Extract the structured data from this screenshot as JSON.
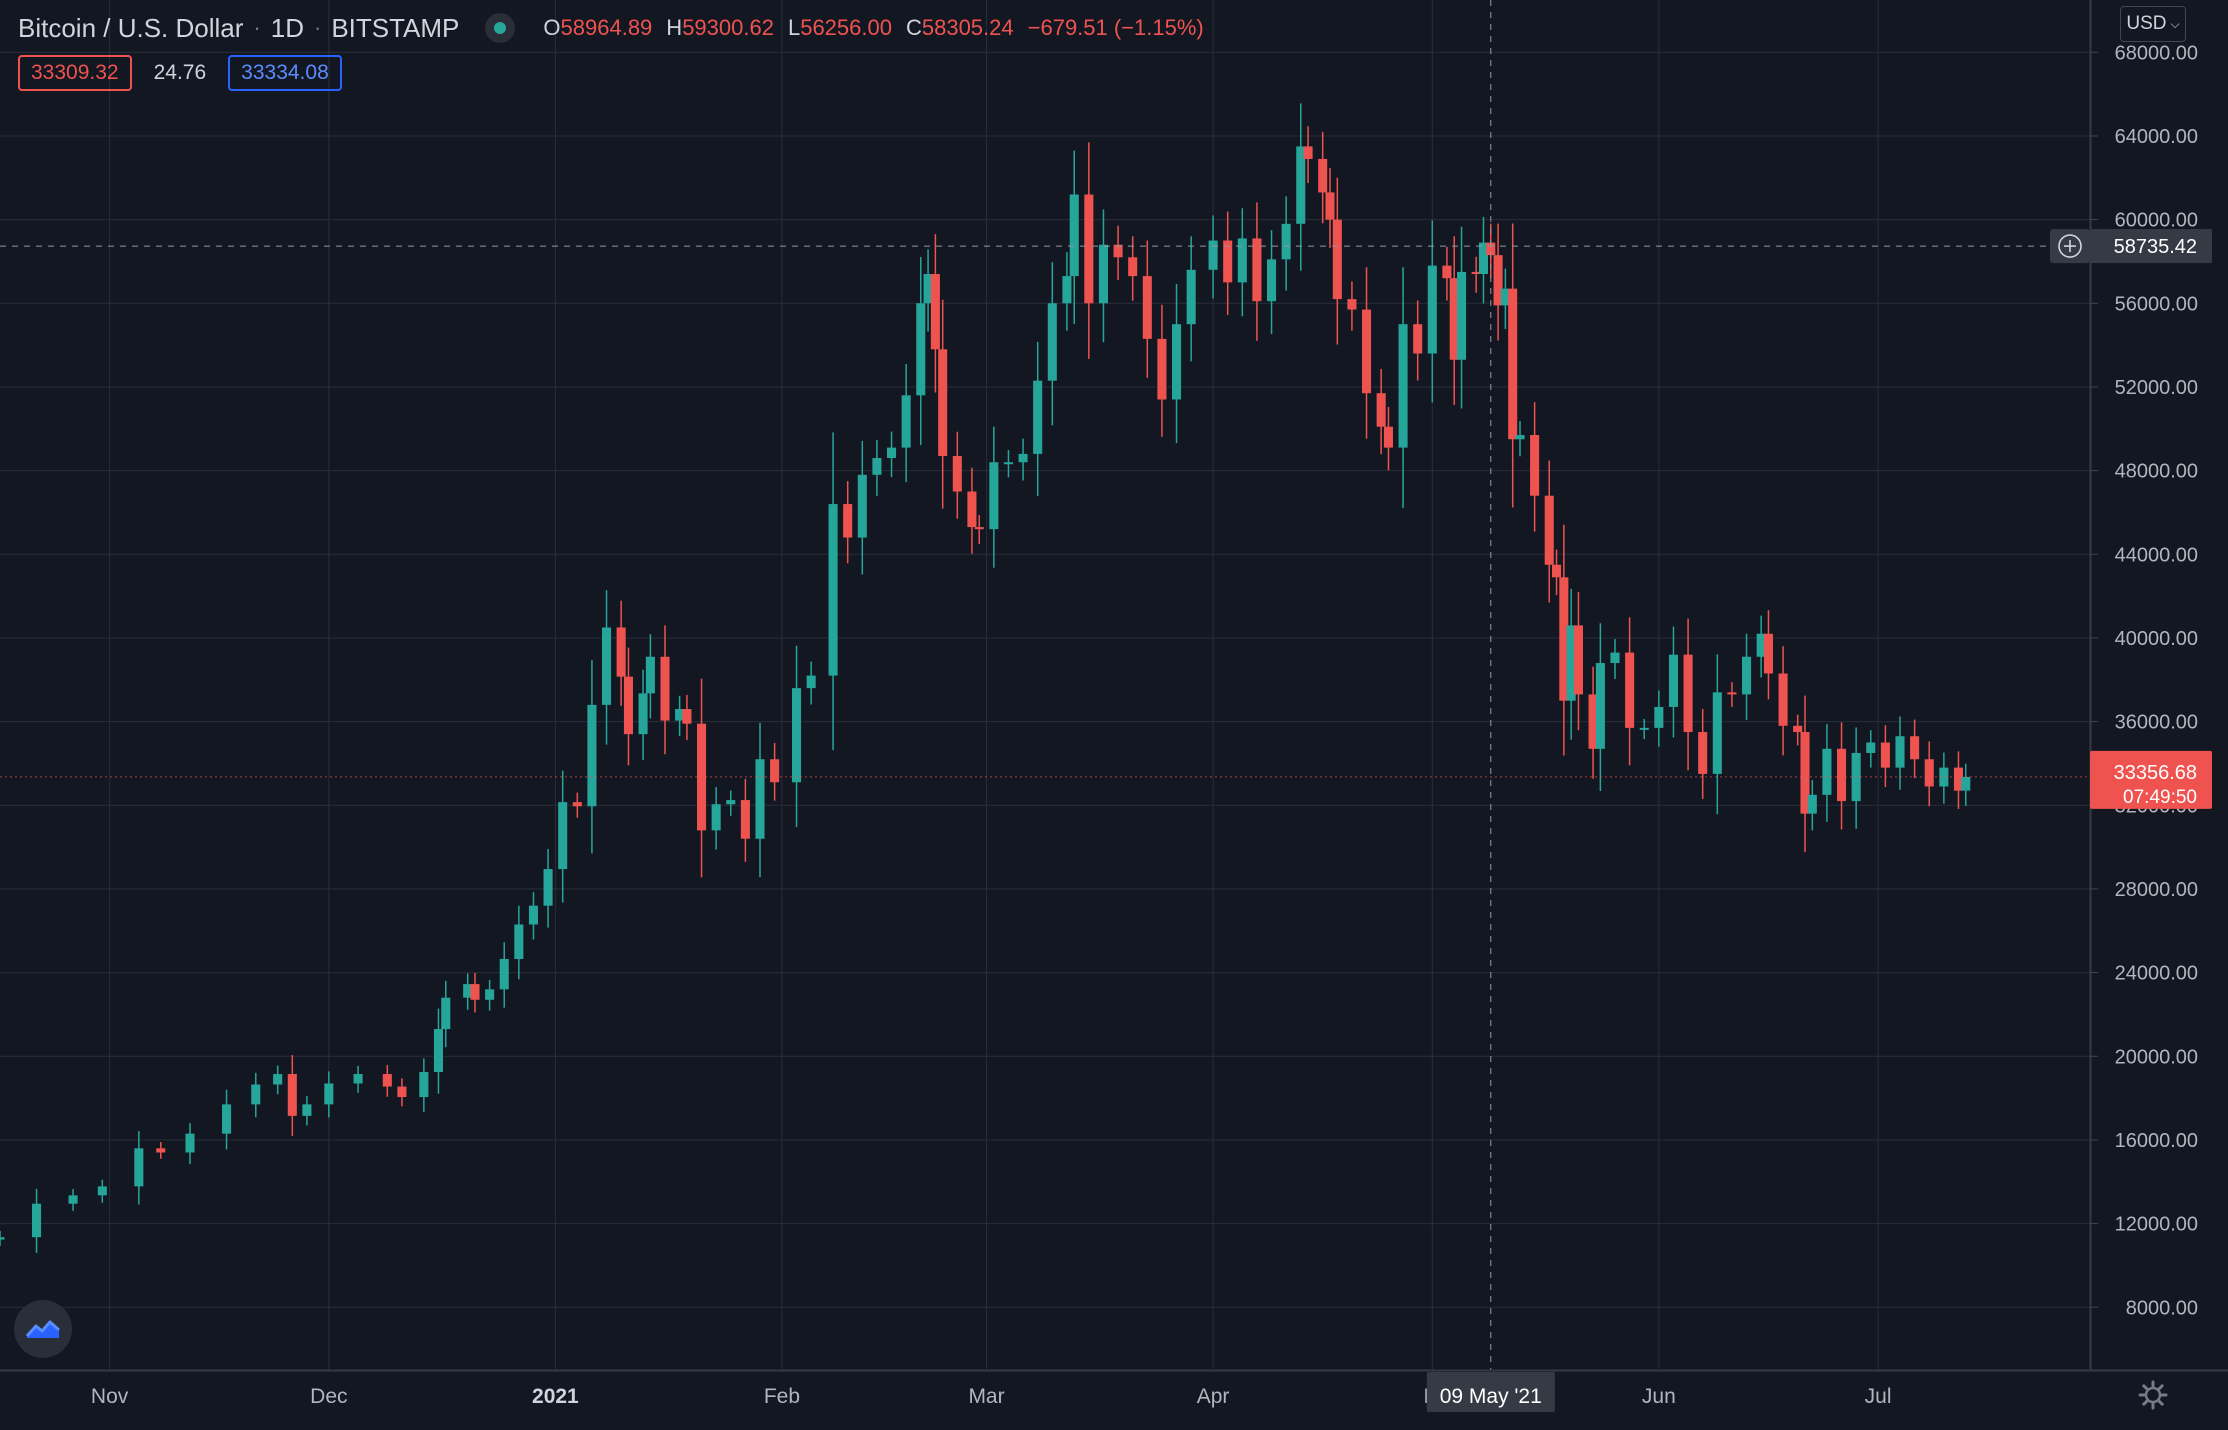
{
  "header": {
    "symbol": "Bitcoin / U.S. Dollar",
    "interval": "1D",
    "exchange": "BITSTAMP",
    "ohlc": {
      "o_label": "O",
      "o": "58964.89",
      "h_label": "H",
      "h": "59300.62",
      "l_label": "L",
      "l": "56256.00",
      "c_label": "C",
      "c": "58305.24",
      "change": "−679.51 (−1.15%)"
    },
    "bid": "33309.32",
    "spread": "24.76",
    "ask": "33334.08",
    "currency": "USD"
  },
  "crosshair": {
    "price_label": "58735.42",
    "date_label": "09 May '21"
  },
  "last_price": {
    "price": "33356.68",
    "countdown": "07:49:50"
  },
  "colors": {
    "up": "#26a69a",
    "down": "#ef5350",
    "background": "#131722",
    "grid": "#2a2e39"
  },
  "chart_data": {
    "type": "candlestick",
    "y_ticks": [
      "68000.00",
      "64000.00",
      "60000.00",
      "56000.00",
      "52000.00",
      "48000.00",
      "44000.00",
      "40000.00",
      "36000.00",
      "32000.00",
      "28000.00",
      "24000.00",
      "20000.00",
      "16000.00",
      "12000.00",
      "8000.00"
    ],
    "ylim": [
      5000,
      70500
    ],
    "x_ticks": [
      {
        "label": "Nov",
        "date": "2020-11-01"
      },
      {
        "label": "Dec",
        "date": "2020-12-01"
      },
      {
        "label": "2021",
        "date": "2021-01-01"
      },
      {
        "label": "Feb",
        "date": "2021-02-01"
      },
      {
        "label": "Mar",
        "date": "2021-03-01"
      },
      {
        "label": "Apr",
        "date": "2021-04-01"
      },
      {
        "label": "M",
        "date": "2021-05-01"
      },
      {
        "label": "Jun",
        "date": "2021-06-01"
      },
      {
        "label": "Jul",
        "date": "2021-07-01"
      }
    ],
    "x_range": [
      "2020-10-17",
      "2021-07-30"
    ],
    "close_series": [
      {
        "date": "2020-10-17",
        "close": 11350
      },
      {
        "date": "2020-10-22",
        "close": 12950
      },
      {
        "date": "2020-10-27",
        "close": 13350
      },
      {
        "date": "2020-10-31",
        "close": 13780
      },
      {
        "date": "2020-11-05",
        "close": 15600
      },
      {
        "date": "2020-11-08",
        "close": 15400
      },
      {
        "date": "2020-11-12",
        "close": 16300
      },
      {
        "date": "2020-11-17",
        "close": 17700
      },
      {
        "date": "2020-11-21",
        "close": 18650
      },
      {
        "date": "2020-11-24",
        "close": 19150
      },
      {
        "date": "2020-11-26",
        "close": 17150
      },
      {
        "date": "2020-11-28",
        "close": 17700
      },
      {
        "date": "2020-12-01",
        "close": 18700
      },
      {
        "date": "2020-12-05",
        "close": 19150
      },
      {
        "date": "2020-12-09",
        "close": 18550
      },
      {
        "date": "2020-12-11",
        "close": 18050
      },
      {
        "date": "2020-12-14",
        "close": 19250
      },
      {
        "date": "2020-12-16",
        "close": 21300
      },
      {
        "date": "2020-12-17",
        "close": 22800
      },
      {
        "date": "2020-12-20",
        "close": 23450
      },
      {
        "date": "2020-12-21",
        "close": 22700
      },
      {
        "date": "2020-12-23",
        "close": 23200
      },
      {
        "date": "2020-12-25",
        "close": 24650
      },
      {
        "date": "2020-12-27",
        "close": 26300
      },
      {
        "date": "2020-12-29",
        "close": 27200
      },
      {
        "date": "2020-12-31",
        "close": 28950
      },
      {
        "date": "2021-01-02",
        "close": 32150
      },
      {
        "date": "2021-01-04",
        "close": 31950
      },
      {
        "date": "2021-01-06",
        "close": 36800
      },
      {
        "date": "2021-01-08",
        "close": 40500
      },
      {
        "date": "2021-01-10",
        "close": 38150
      },
      {
        "date": "2021-01-11",
        "close": 35400
      },
      {
        "date": "2021-01-13",
        "close": 37350
      },
      {
        "date": "2021-01-14",
        "close": 39100
      },
      {
        "date": "2021-01-16",
        "close": 36050
      },
      {
        "date": "2021-01-18",
        "close": 36600
      },
      {
        "date": "2021-01-19",
        "close": 35900
      },
      {
        "date": "2021-01-21",
        "close": 30800
      },
      {
        "date": "2021-01-23",
        "close": 32050
      },
      {
        "date": "2021-01-25",
        "close": 32250
      },
      {
        "date": "2021-01-27",
        "close": 30400
      },
      {
        "date": "2021-01-29",
        "close": 34200
      },
      {
        "date": "2021-01-31",
        "close": 33100
      },
      {
        "date": "2021-02-03",
        "close": 37600
      },
      {
        "date": "2021-02-05",
        "close": 38200
      },
      {
        "date": "2021-02-08",
        "close": 46400
      },
      {
        "date": "2021-02-10",
        "close": 44800
      },
      {
        "date": "2021-02-12",
        "close": 47800
      },
      {
        "date": "2021-02-14",
        "close": 48600
      },
      {
        "date": "2021-02-16",
        "close": 49100
      },
      {
        "date": "2021-02-18",
        "close": 51600
      },
      {
        "date": "2021-02-20",
        "close": 56000
      },
      {
        "date": "2021-02-21",
        "close": 57400
      },
      {
        "date": "2021-02-22",
        "close": 53800
      },
      {
        "date": "2021-02-23",
        "close": 48700
      },
      {
        "date": "2021-02-25",
        "close": 47000
      },
      {
        "date": "2021-02-27",
        "close": 45300
      },
      {
        "date": "2021-02-28",
        "close": 45200
      },
      {
        "date": "2021-03-02",
        "close": 48400
      },
      {
        "date": "2021-03-04",
        "close": 48400
      },
      {
        "date": "2021-03-06",
        "close": 48800
      },
      {
        "date": "2021-03-08",
        "close": 52300
      },
      {
        "date": "2021-03-10",
        "close": 56000
      },
      {
        "date": "2021-03-12",
        "close": 57300
      },
      {
        "date": "2021-03-13",
        "close": 61200
      },
      {
        "date": "2021-03-15",
        "close": 56000
      },
      {
        "date": "2021-03-17",
        "close": 58800
      },
      {
        "date": "2021-03-19",
        "close": 58200
      },
      {
        "date": "2021-03-21",
        "close": 57300
      },
      {
        "date": "2021-03-23",
        "close": 54300
      },
      {
        "date": "2021-03-25",
        "close": 51400
      },
      {
        "date": "2021-03-27",
        "close": 55000
      },
      {
        "date": "2021-03-29",
        "close": 57600
      },
      {
        "date": "2021-04-01",
        "close": 59000
      },
      {
        "date": "2021-04-03",
        "close": 57000
      },
      {
        "date": "2021-04-05",
        "close": 59100
      },
      {
        "date": "2021-04-07",
        "close": 56100
      },
      {
        "date": "2021-04-09",
        "close": 58100
      },
      {
        "date": "2021-04-11",
        "close": 59800
      },
      {
        "date": "2021-04-13",
        "close": 63500
      },
      {
        "date": "2021-04-14",
        "close": 62900
      },
      {
        "date": "2021-04-16",
        "close": 61300
      },
      {
        "date": "2021-04-17",
        "close": 60000
      },
      {
        "date": "2021-04-18",
        "close": 56200
      },
      {
        "date": "2021-04-20",
        "close": 55700
      },
      {
        "date": "2021-04-22",
        "close": 51700
      },
      {
        "date": "2021-04-24",
        "close": 50100
      },
      {
        "date": "2021-04-25",
        "close": 49100
      },
      {
        "date": "2021-04-27",
        "close": 55000
      },
      {
        "date": "2021-04-29",
        "close": 53600
      },
      {
        "date": "2021-05-01",
        "close": 57800
      },
      {
        "date": "2021-05-03",
        "close": 57200
      },
      {
        "date": "2021-05-04",
        "close": 53300
      },
      {
        "date": "2021-05-05",
        "close": 57500
      },
      {
        "date": "2021-05-07",
        "close": 57400
      },
      {
        "date": "2021-05-08",
        "close": 58900
      },
      {
        "date": "2021-05-09",
        "close": 58300
      },
      {
        "date": "2021-05-10",
        "close": 55900
      },
      {
        "date": "2021-05-11",
        "close": 56700
      },
      {
        "date": "2021-05-12",
        "close": 49500
      },
      {
        "date": "2021-05-13",
        "close": 49700
      },
      {
        "date": "2021-05-15",
        "close": 46800
      },
      {
        "date": "2021-05-17",
        "close": 43500
      },
      {
        "date": "2021-05-18",
        "close": 42900
      },
      {
        "date": "2021-05-19",
        "close": 37000
      },
      {
        "date": "2021-05-20",
        "close": 40600
      },
      {
        "date": "2021-05-21",
        "close": 37300
      },
      {
        "date": "2021-05-23",
        "close": 34700
      },
      {
        "date": "2021-05-24",
        "close": 38800
      },
      {
        "date": "2021-05-26",
        "close": 39300
      },
      {
        "date": "2021-05-28",
        "close": 35700
      },
      {
        "date": "2021-05-30",
        "close": 35700
      },
      {
        "date": "2021-06-01",
        "close": 36700
      },
      {
        "date": "2021-06-03",
        "close": 39200
      },
      {
        "date": "2021-06-05",
        "close": 35500
      },
      {
        "date": "2021-06-07",
        "close": 33500
      },
      {
        "date": "2021-06-09",
        "close": 37400
      },
      {
        "date": "2021-06-11",
        "close": 37300
      },
      {
        "date": "2021-06-13",
        "close": 39100
      },
      {
        "date": "2021-06-15",
        "close": 40200
      },
      {
        "date": "2021-06-16",
        "close": 38300
      },
      {
        "date": "2021-06-18",
        "close": 35800
      },
      {
        "date": "2021-06-20",
        "close": 35500
      },
      {
        "date": "2021-06-21",
        "close": 31600
      },
      {
        "date": "2021-06-22",
        "close": 32500
      },
      {
        "date": "2021-06-24",
        "close": 34700
      },
      {
        "date": "2021-06-26",
        "close": 32200
      },
      {
        "date": "2021-06-28",
        "close": 34500
      },
      {
        "date": "2021-06-30",
        "close": 35000
      },
      {
        "date": "2021-07-02",
        "close": 33800
      },
      {
        "date": "2021-07-04",
        "close": 35300
      },
      {
        "date": "2021-07-06",
        "close": 34200
      },
      {
        "date": "2021-07-08",
        "close": 32900
      },
      {
        "date": "2021-07-10",
        "close": 33800
      },
      {
        "date": "2021-07-12",
        "close": 32700
      },
      {
        "date": "2021-07-13",
        "close": 33357
      }
    ]
  }
}
